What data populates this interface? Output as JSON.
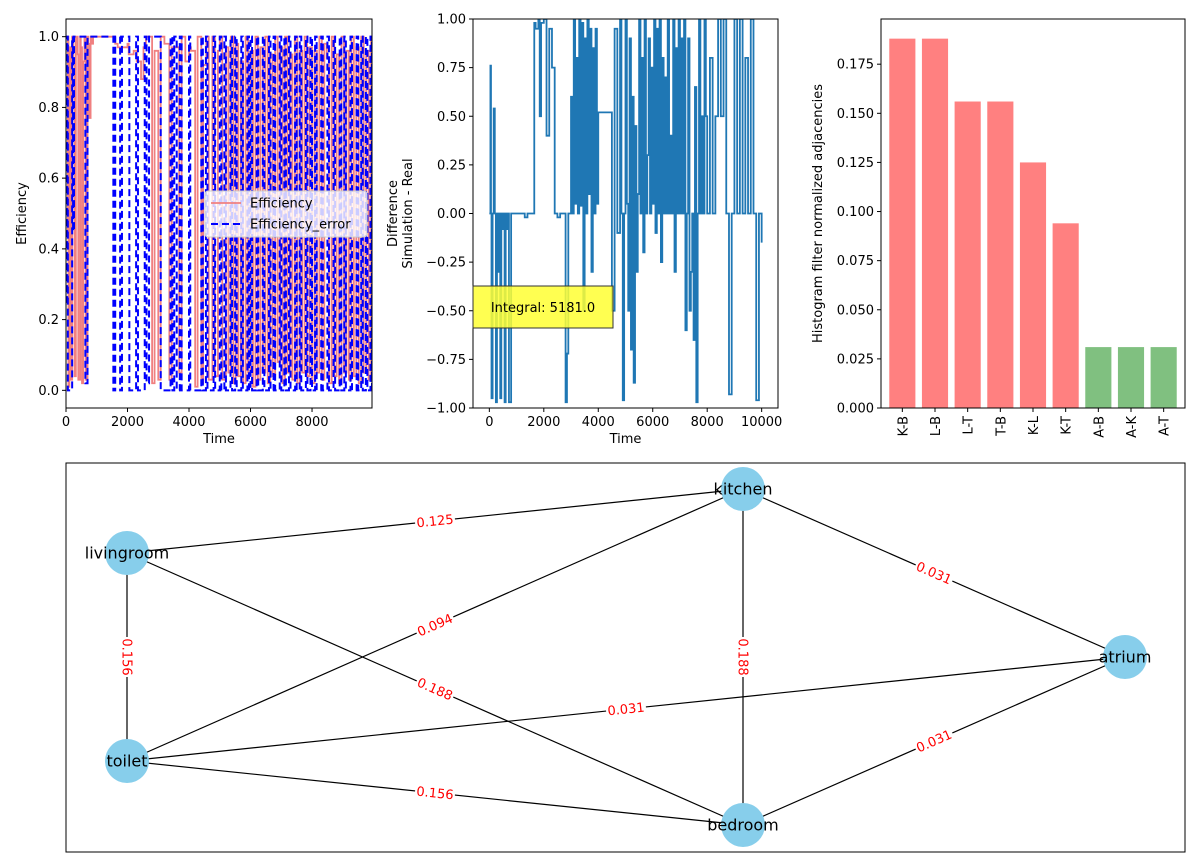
{
  "chart_data": [
    {
      "type": "line",
      "xlabel": "Time",
      "ylabel": "Efficiency",
      "xlim": [
        0,
        10000
      ],
      "ylim": [
        -0.05,
        1.05
      ],
      "xticks": [
        "0",
        "2000",
        "4000",
        "6000",
        "8000"
      ],
      "yticks": [
        "0.0",
        "0.2",
        "0.4",
        "0.6",
        "0.8",
        "1.0"
      ],
      "legend": {
        "position": "center-right",
        "entries": [
          "Efficiency",
          "Efficiency_error"
        ]
      },
      "series": [
        {
          "name": "Efficiency",
          "color": "#f08080",
          "style": "solid",
          "x": [
            0,
            60,
            80,
            110,
            150,
            200,
            240,
            280,
            320,
            380,
            400,
            460,
            480,
            520,
            560,
            600,
            640,
            700,
            720,
            760,
            800,
            850,
            880,
            1600,
            1680,
            2000,
            2040,
            2200,
            2300,
            2440,
            2520,
            2600,
            2800,
            2880,
            3000,
            3080,
            3200,
            3360,
            3440,
            3600,
            3680,
            3760,
            3880,
            4000,
            4060,
            4200,
            4280,
            4400,
            4460,
            4560,
            4640,
            4760,
            4840,
            4940,
            5000,
            5080,
            5200,
            5280,
            5360,
            5440,
            5520,
            5600,
            5680,
            5760,
            5840,
            5920,
            6000,
            6080,
            6160,
            6240,
            6320,
            6400,
            6480,
            6560,
            6640,
            6720,
            6800,
            6880,
            6960,
            7040,
            7120,
            7200,
            7280,
            7360,
            7440,
            7520,
            7600,
            7680,
            7760,
            7840,
            7920,
            8000,
            8080,
            8160,
            8240,
            8320,
            8400,
            8480,
            8560,
            8640,
            8720,
            8800,
            8880,
            8960,
            9040,
            9120,
            9200,
            9280,
            9360,
            9440,
            9520,
            9600,
            9680,
            9760,
            9840,
            9920,
            10000
          ],
          "y": [
            0.45,
            1.0,
            0.01,
            0.97,
            0.03,
            1.0,
            0.92,
            0.04,
            1.0,
            0.95,
            0.03,
            1.0,
            0.97,
            0.02,
            0.93,
            1.0,
            0.03,
            1.0,
            0.98,
            0.77,
            1.0,
            0.98,
            1.0,
            0.98,
            0.97,
            0.98,
            0.95,
            0.96,
            0.93,
            0.88,
            0.97,
            1.0,
            0.02,
            0.96,
            0.03,
            1.0,
            0.98,
            0.03,
            0.97,
            0.97,
            0.05,
            1.0,
            0.93,
            0.97,
            0.96,
            0.01,
            1.0,
            0.02,
            0.92,
            1.0,
            0.03,
            1.0,
            0.04,
            0.96,
            1.0,
            0.03,
            0.97,
            0.05,
            1.0,
            0.02,
            0.98,
            0.04,
            0.93,
            0.02,
            1.0,
            0.05,
            0.96,
            0.01,
            1.0,
            0.03,
            0.97,
            0.05,
            1.0,
            0.02,
            0.95,
            0.04,
            1.0,
            0.08,
            0.97,
            0.02,
            1.0,
            0.05,
            0.95,
            0.03,
            1.0,
            0.02,
            0.96,
            0.05,
            1.0,
            0.04,
            0.97,
            0.02,
            0.96,
            0.05,
            1.0,
            0.03,
            0.98,
            0.94,
            0.02,
            1.0,
            0.04,
            0.95,
            0.02,
            1.0,
            0.05,
            0.96,
            0.03,
            1.0,
            0.04,
            0.97,
            0.02,
            1.0,
            0.05,
            0.96,
            0.03,
            1.0,
            1.0
          ]
        },
        {
          "name": "Efficiency_error",
          "color": "#0000ff",
          "style": "dashed",
          "x": [
            0,
            40,
            60,
            200,
            230,
            260,
            600,
            630,
            700,
            1500,
            1540,
            1600,
            1700,
            1760,
            1820,
            2000,
            2060,
            2280,
            2340,
            2560,
            2620,
            2700,
            3000,
            3080,
            3400,
            3460,
            3520,
            3600,
            3700,
            3760,
            4000,
            4040,
            4400,
            4450,
            4550,
            4600,
            4800,
            4850,
            5000,
            5050,
            5150,
            5200,
            5350,
            5400,
            5500,
            5550,
            5700,
            5750,
            5900,
            5950,
            6000,
            6050,
            6200,
            6250,
            6400,
            6450,
            6600,
            6650,
            6750,
            6800,
            6950,
            7000,
            7100,
            7150,
            7250,
            7300,
            7450,
            7500,
            7600,
            7650,
            7800,
            7850,
            7950,
            8000,
            8100,
            8150,
            8300,
            8350,
            8500,
            8550,
            8700,
            8750,
            8900,
            8950,
            9050,
            9100,
            9250,
            9300,
            9450,
            9500,
            9600,
            9650,
            9750,
            9800,
            9900,
            9950,
            10000
          ],
          "y": [
            0.25,
            1.0,
            0.0,
            1.0,
            0.45,
            1.0,
            1.0,
            0.02,
            1.0,
            1.0,
            0.0,
            1.0,
            1.0,
            0.0,
            1.0,
            1.0,
            0.0,
            1.0,
            0.0,
            1.0,
            0.02,
            1.0,
            1.0,
            0.0,
            1.0,
            0.0,
            1.0,
            0.0,
            1.0,
            0.0,
            1.0,
            0.0,
            1.0,
            0.0,
            1.0,
            0.0,
            1.0,
            0.0,
            1.0,
            0.0,
            1.0,
            0.0,
            1.0,
            0.0,
            1.0,
            0.0,
            1.0,
            0.0,
            1.0,
            0.0,
            1.0,
            0.0,
            1.0,
            0.0,
            1.0,
            0.0,
            1.0,
            0.0,
            1.0,
            0.0,
            1.0,
            0.0,
            1.0,
            0.0,
            1.0,
            0.0,
            1.0,
            0.0,
            1.0,
            0.0,
            1.0,
            0.0,
            1.0,
            0.0,
            1.0,
            0.0,
            1.0,
            0.0,
            1.0,
            0.0,
            1.0,
            0.0,
            1.0,
            0.0,
            1.0,
            0.0,
            1.0,
            0.0,
            1.0,
            0.0,
            1.0,
            0.0,
            1.0,
            0.0,
            1.0,
            0.0,
            1.0
          ]
        }
      ]
    },
    {
      "type": "line",
      "xlabel": "Time",
      "ylabel": [
        "Difference",
        "Simulation - Real"
      ],
      "xlim": [
        -600,
        10600
      ],
      "ylim": [
        -1.0,
        1.0
      ],
      "xticks": [
        "0",
        "2000",
        "4000",
        "6000",
        "8000",
        "10000"
      ],
      "yticks": [
        "−1.00",
        "−0.75",
        "−0.50",
        "−0.25",
        "0.00",
        "0.25",
        "0.50",
        "0.75",
        "1.00"
      ],
      "annotation": "Integral: 5181.0",
      "series": [
        {
          "color": "#1f77b4",
          "x": [
            0,
            40,
            60,
            80,
            120,
            160,
            200,
            240,
            280,
            320,
            360,
            400,
            440,
            480,
            520,
            560,
            600,
            640,
            680,
            720,
            800,
            880,
            1000,
            1200,
            1300,
            1400,
            1500,
            1600,
            1650,
            1700,
            1800,
            1850,
            1900,
            2000,
            2100,
            2200,
            2300,
            2400,
            2500,
            2600,
            2700,
            2800,
            2850,
            2900,
            3000,
            3050,
            3100,
            3150,
            3200,
            3250,
            3300,
            3350,
            3400,
            3450,
            3500,
            3550,
            3600,
            3650,
            3700,
            3750,
            3800,
            3850,
            3900,
            3950,
            4000,
            4100,
            4200,
            4300,
            4400,
            4500,
            4600,
            4700,
            4800,
            4850,
            4900,
            4950,
            5000,
            5050,
            5100,
            5150,
            5200,
            5250,
            5300,
            5350,
            5400,
            5450,
            5500,
            5550,
            5600,
            5650,
            5700,
            5750,
            5800,
            5850,
            5900,
            5950,
            6000,
            6050,
            6100,
            6150,
            6200,
            6250,
            6300,
            6350,
            6400,
            6450,
            6500,
            6550,
            6600,
            6650,
            6700,
            6750,
            6800,
            6850,
            6900,
            6950,
            7000,
            7050,
            7100,
            7150,
            7200,
            7250,
            7300,
            7350,
            7400,
            7450,
            7500,
            7550,
            7600,
            7650,
            7700,
            7750,
            7800,
            7850,
            7900,
            7950,
            8000,
            8100,
            8200,
            8300,
            8400,
            8500,
            8600,
            8700,
            8800,
            8900,
            9000,
            9100,
            9200,
            9300,
            9400,
            9500,
            9600,
            9700,
            9800,
            9900,
            10000
          ],
          "y": [
            0.0,
            0.76,
            0.0,
            -0.95,
            0.0,
            0.54,
            0.0,
            -0.97,
            0.0,
            -0.3,
            0.0,
            -0.95,
            0.0,
            -0.08,
            0.0,
            -0.97,
            0.0,
            -0.08,
            0.0,
            -0.97,
            0.0,
            0.0,
            0.0,
            0.0,
            -0.02,
            0.0,
            0.0,
            0.0,
            0.98,
            0.95,
            1.0,
            0.5,
            0.98,
            1.0,
            0.4,
            0.95,
            0.75,
            0.0,
            -0.02,
            0.0,
            0.0,
            -0.97,
            -0.72,
            0.0,
            0.6,
            0.0,
            1.0,
            0.05,
            0.8,
            0.0,
            1.0,
            0.04,
            0.98,
            -0.5,
            0.9,
            0.0,
            1.0,
            0.1,
            0.95,
            -0.3,
            0.85,
            0.0,
            0.95,
            0.05,
            0.52,
            0.52,
            0.52,
            0.52,
            0.52,
            -0.5,
            0.95,
            -0.1,
            1.0,
            0.0,
            -0.96,
            0.0,
            1.0,
            0.05,
            -0.5,
            0.9,
            -0.7,
            0.6,
            -0.87,
            0.45,
            -0.3,
            0.1,
            1.0,
            0.0,
            0.8,
            -0.2,
            1.0,
            0.0,
            0.3,
            0.9,
            0.0,
            0.75,
            0.05,
            1.0,
            -0.1,
            0.95,
            0.0,
            1.0,
            -0.25,
            0.8,
            0.0,
            0.7,
            0.0,
            1.0,
            0.0,
            0.4,
            0.0,
            1.0,
            -0.3,
            0.85,
            0.0,
            1.0,
            0.0,
            0.9,
            0.0,
            1.0,
            -0.6,
            0.0,
            0.9,
            -0.5,
            -0.3,
            0.0,
            -0.65,
            0.65,
            -0.97,
            0.0,
            1.0,
            0.0,
            0.5,
            0.0,
            1.0,
            0.5,
            0.0,
            0.8,
            0.0,
            0.5,
            1.0,
            0.5,
            1.0,
            0.0,
            -0.93,
            0.0,
            1.0,
            0.0,
            1.0,
            0.0,
            0.8,
            0.0,
            1.0,
            0.0,
            -0.96,
            0.0,
            -0.15
          ]
        }
      ]
    },
    {
      "type": "bar",
      "ylabel": "Histogram filter normalized adjacencies",
      "ylim": [
        0,
        0.198
      ],
      "yticks": [
        "0.000",
        "0.025",
        "0.050",
        "0.075",
        "0.100",
        "0.125",
        "0.150",
        "0.175"
      ],
      "categories": [
        "K-B",
        "L-B",
        "L-T",
        "T-B",
        "K-L",
        "K-T",
        "A-B",
        "A-K",
        "A-T"
      ],
      "values": [
        0.188,
        0.188,
        0.156,
        0.156,
        0.125,
        0.094,
        0.031,
        0.031,
        0.031
      ],
      "colors": [
        "#ff8080",
        "#ff8080",
        "#ff8080",
        "#ff8080",
        "#ff8080",
        "#ff8080",
        "#80c080",
        "#80c080",
        "#80c080"
      ]
    }
  ],
  "graph": {
    "node_color": "#87ceeb",
    "edge_label_color": "#ff0000",
    "nodes": [
      {
        "id": "kitchen",
        "label": "kitchen"
      },
      {
        "id": "livingroom",
        "label": "livingroom"
      },
      {
        "id": "atrium",
        "label": "atrium"
      },
      {
        "id": "toilet",
        "label": "toilet"
      },
      {
        "id": "bedroom",
        "label": "bedroom"
      }
    ],
    "edges": [
      {
        "from": "livingroom",
        "to": "kitchen",
        "label": "0.125"
      },
      {
        "from": "kitchen",
        "to": "atrium",
        "label": "0.031"
      },
      {
        "from": "livingroom",
        "to": "toilet",
        "label": "0.156"
      },
      {
        "from": "toilet",
        "to": "kitchen",
        "label": "0.094"
      },
      {
        "from": "livingroom",
        "to": "bedroom",
        "label": "0.188"
      },
      {
        "from": "kitchen",
        "to": "bedroom",
        "label": "0.188"
      },
      {
        "from": "toilet",
        "to": "atrium",
        "label": "0.031"
      },
      {
        "from": "bedroom",
        "to": "atrium",
        "label": "0.031"
      },
      {
        "from": "toilet",
        "to": "bedroom",
        "label": "0.156"
      }
    ]
  }
}
